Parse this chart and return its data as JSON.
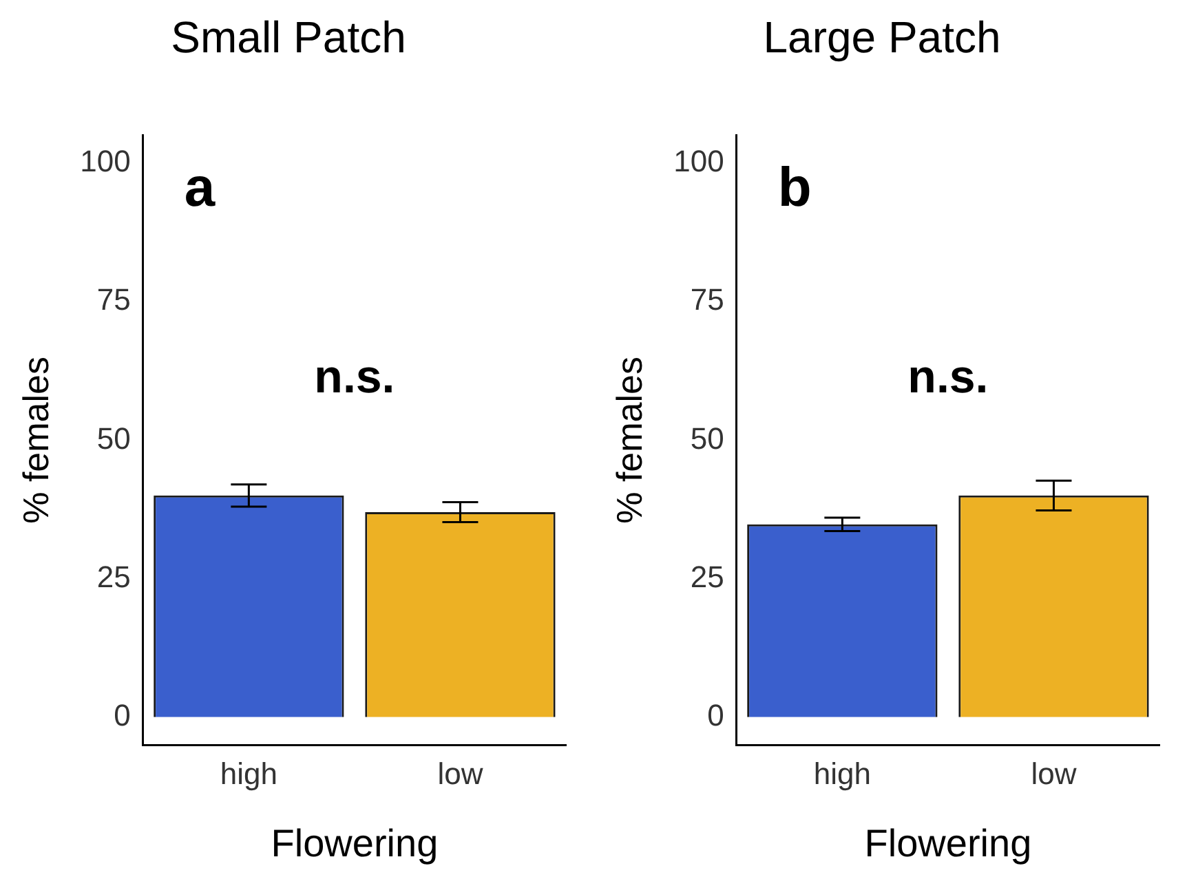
{
  "chart_data": [
    {
      "type": "bar",
      "title": "Small Patch",
      "xlabel": "Flowering",
      "ylabel": "% females",
      "categories": [
        "high",
        "low"
      ],
      "values": [
        40,
        37
      ],
      "errors": [
        2,
        1.8
      ],
      "colors": [
        "#3a5fcd",
        "#edb124"
      ],
      "ylim": [
        -5,
        105
      ],
      "yticks": [
        0,
        25,
        50,
        75,
        100
      ],
      "grid": false,
      "legend": false,
      "annotations": [
        "a",
        "n.s."
      ]
    },
    {
      "type": "bar",
      "title": "Large Patch",
      "xlabel": "Flowering",
      "ylabel": "% females",
      "categories": [
        "high",
        "low"
      ],
      "values": [
        34.8,
        40
      ],
      "errors": [
        1.2,
        2.7
      ],
      "colors": [
        "#3a5fcd",
        "#edb124"
      ],
      "ylim": [
        -5,
        105
      ],
      "yticks": [
        0,
        25,
        50,
        75,
        100
      ],
      "grid": false,
      "legend": false,
      "annotations": [
        "b",
        "n.s."
      ]
    }
  ]
}
